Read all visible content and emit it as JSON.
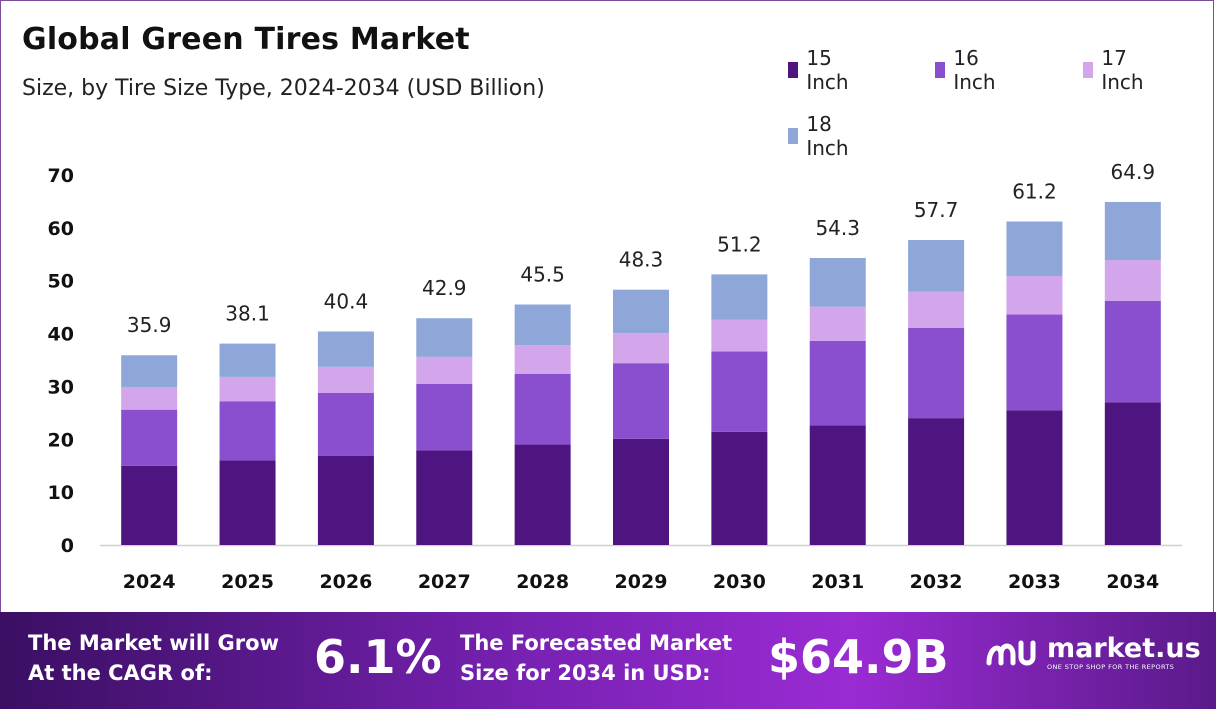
{
  "header": {
    "title": "Global Green Tires Market",
    "subtitle": "Size, by Tire Size Type, 2024-2034 (USD Billion)"
  },
  "legend": [
    {
      "label": "15 Inch",
      "color": "#4e1580"
    },
    {
      "label": "16 Inch",
      "color": "#8a4fce"
    },
    {
      "label": "17 Inch",
      "color": "#d3a6ec"
    },
    {
      "label": "18 Inch",
      "color": "#8ea7d8"
    }
  ],
  "chart_data": {
    "type": "bar",
    "stacked": true,
    "title": "Global Green Tires Market",
    "subtitle": "Size, by Tire Size Type, 2024-2034 (USD Billion)",
    "categories": [
      "2024",
      "2025",
      "2026",
      "2027",
      "2028",
      "2029",
      "2030",
      "2031",
      "2032",
      "2033",
      "2034"
    ],
    "series": [
      {
        "name": "15 Inch",
        "color": "#4e1580",
        "values": [
          15.0,
          16.0,
          16.9,
          17.9,
          19.0,
          20.1,
          21.4,
          22.6,
          24.0,
          25.5,
          27.0
        ]
      },
      {
        "name": "16 Inch",
        "color": "#8a4fce",
        "values": [
          10.6,
          11.2,
          11.9,
          12.6,
          13.4,
          14.3,
          15.2,
          16.0,
          17.1,
          18.1,
          19.2
        ]
      },
      {
        "name": "17 Inch",
        "color": "#d3a6ec",
        "values": [
          4.3,
          4.6,
          4.9,
          5.1,
          5.4,
          5.7,
          6.0,
          6.5,
          6.8,
          7.3,
          7.7
        ]
      },
      {
        "name": "18 Inch",
        "color": "#8ea7d8",
        "values": [
          6.0,
          6.3,
          6.7,
          7.3,
          7.7,
          8.2,
          8.6,
          9.2,
          9.8,
          10.3,
          11.0
        ]
      }
    ],
    "totals": [
      "35.9",
      "38.1",
      "40.4",
      "42.9",
      "45.5",
      "48.3",
      "51.2",
      "54.3",
      "57.7",
      "61.2",
      "64.9"
    ],
    "yticks": [
      "0",
      "10",
      "20",
      "30",
      "40",
      "50",
      "60",
      "70"
    ],
    "ylim": [
      0,
      70
    ],
    "grid": false,
    "legend_position": "top-right"
  },
  "banner": {
    "cagr_label": "The Market will Grow\nAt the CAGR of:",
    "cagr_value": "6.1%",
    "forecast_label": "The Forecasted Market\nSize for 2034 in USD:",
    "forecast_value": "$64.9B"
  },
  "logo": {
    "name": "market.us",
    "tagline": "ONE STOP SHOP FOR THE REPORTS"
  }
}
